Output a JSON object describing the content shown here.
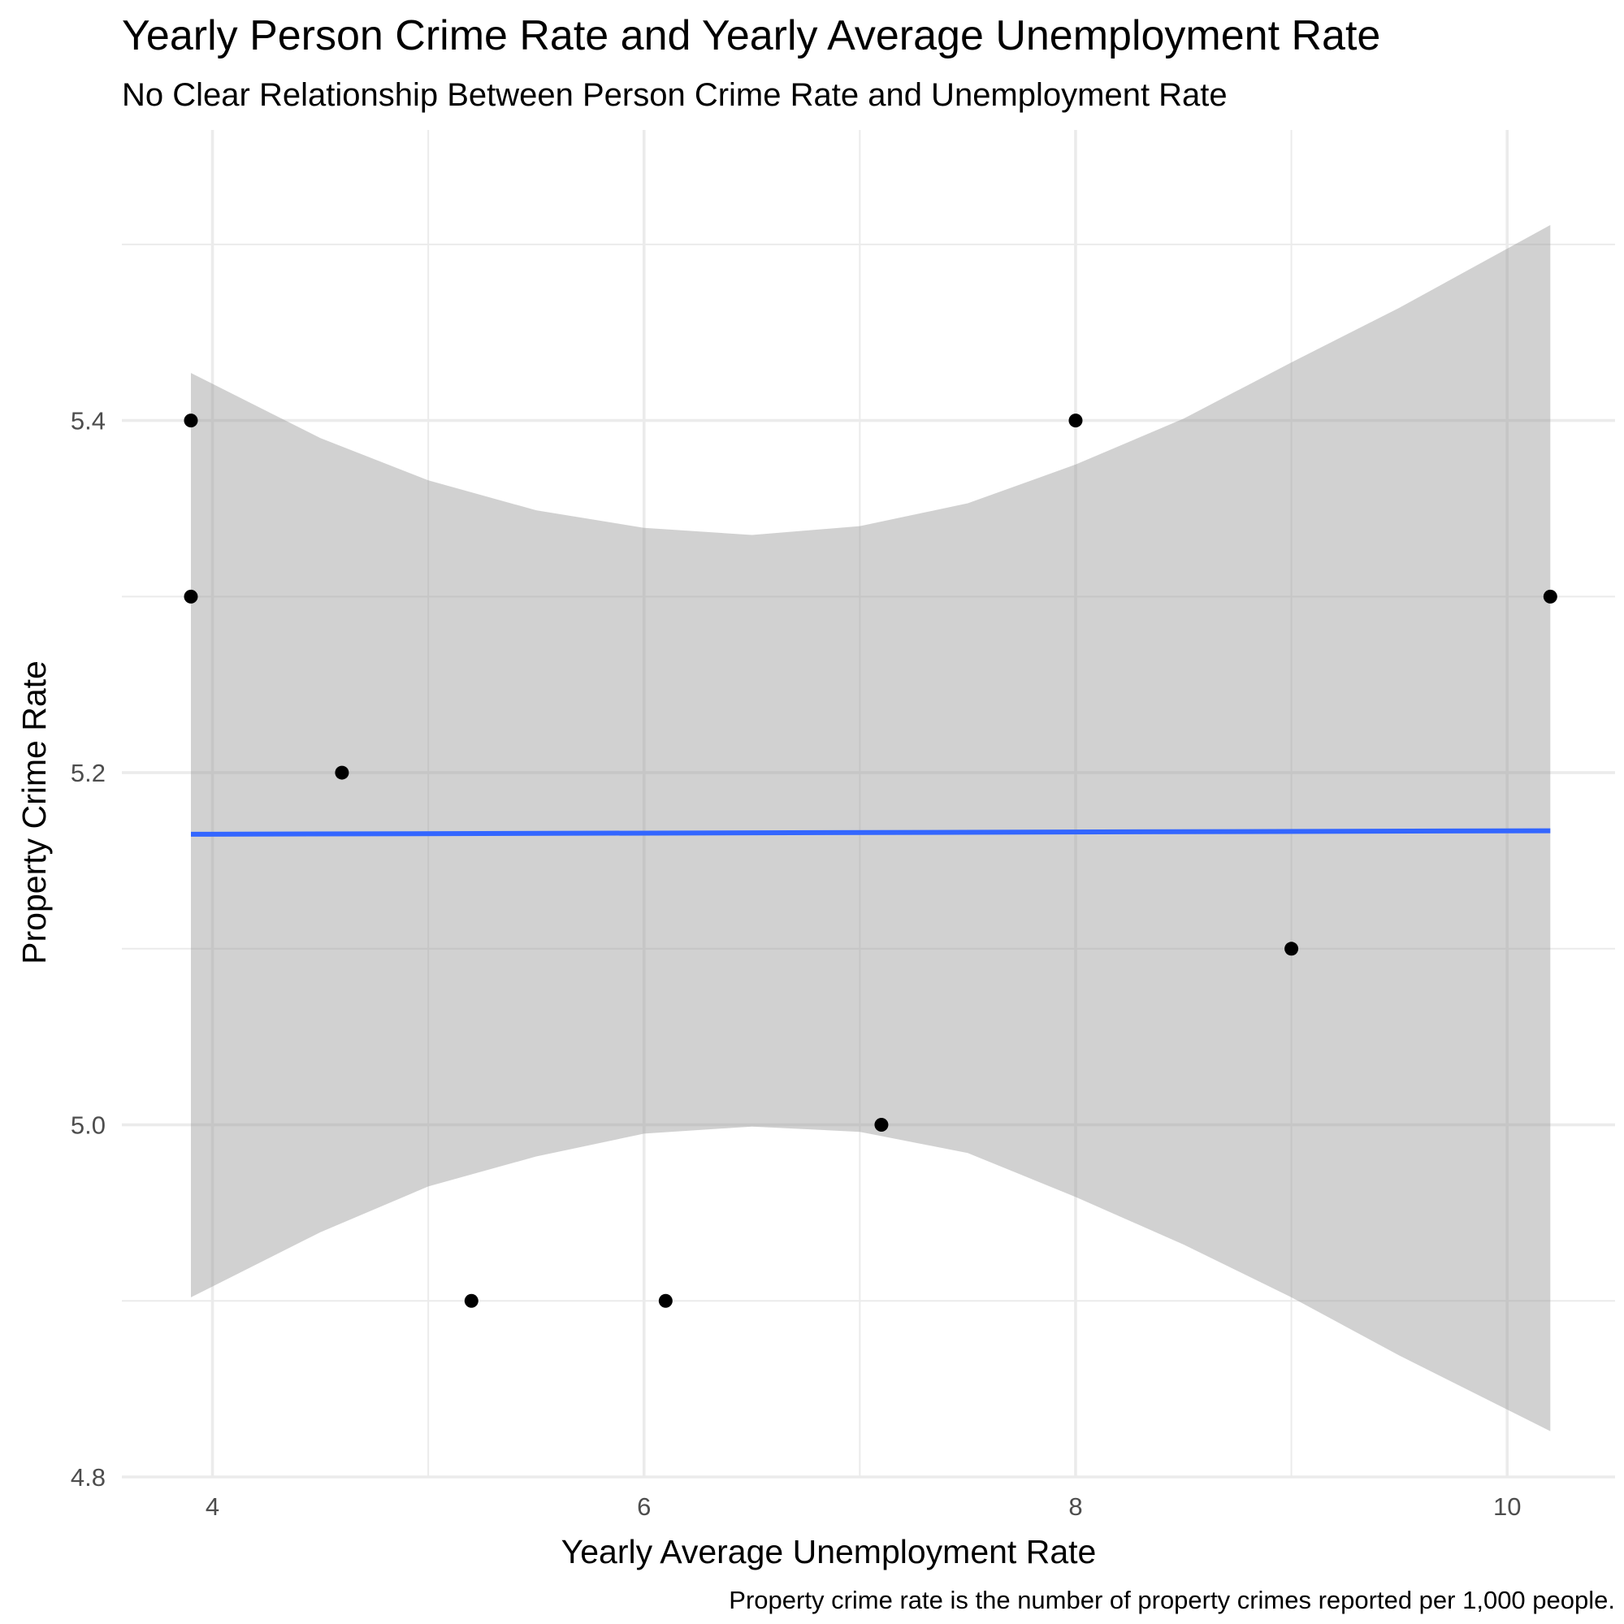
{
  "chart_data": {
    "type": "scatter",
    "title": "Yearly Person Crime Rate and Yearly Average Unemployment Rate",
    "subtitle": "No Clear Relationship Between Person Crime Rate and Unemployment Rate",
    "xlabel": "Yearly Average Unemployment Rate",
    "ylabel": "Property Crime Rate",
    "caption": "Property crime rate is the number of property crimes reported per 1,000 people.",
    "xlim": [
      3.58,
      10.5
    ],
    "ylim": [
      4.8,
      5.565
    ],
    "x_ticks": [
      4,
      6,
      8,
      10
    ],
    "x_tick_labels": [
      "4",
      "6",
      "8",
      "10"
    ],
    "x_minor_ticks": [
      5,
      7,
      9
    ],
    "y_ticks": [
      4.8,
      5.0,
      5.2,
      5.4
    ],
    "y_tick_labels": [
      "4.8",
      "5.0",
      "5.2",
      "5.4"
    ],
    "y_minor_ticks": [
      4.9,
      5.1,
      5.3,
      5.5
    ],
    "grid": true,
    "points": [
      {
        "x": 3.9,
        "y": 5.4
      },
      {
        "x": 3.9,
        "y": 5.3
      },
      {
        "x": 4.6,
        "y": 5.2
      },
      {
        "x": 5.2,
        "y": 4.9
      },
      {
        "x": 6.1,
        "y": 4.9
      },
      {
        "x": 7.1,
        "y": 5.0
      },
      {
        "x": 8.0,
        "y": 5.4
      },
      {
        "x": 9.0,
        "y": 5.1
      },
      {
        "x": 10.2,
        "y": 5.3
      }
    ],
    "fit_line": {
      "method": "linear",
      "x": [
        3.9,
        10.2
      ],
      "y": [
        5.165,
        5.167
      ],
      "color": "#3366FF"
    },
    "confidence_band": {
      "x": [
        3.9,
        4.5,
        5.0,
        5.5,
        6.0,
        6.5,
        7.0,
        7.5,
        8.0,
        8.5,
        9.0,
        9.5,
        10.2
      ],
      "upper": [
        5.427,
        5.39,
        5.366,
        5.349,
        5.339,
        5.335,
        5.34,
        5.353,
        5.375,
        5.401,
        5.433,
        5.464,
        5.511
      ],
      "lower": [
        4.902,
        4.939,
        4.965,
        4.982,
        4.995,
        4.999,
        4.996,
        4.984,
        4.959,
        4.932,
        4.902,
        4.869,
        4.826
      ],
      "color": "#999999"
    },
    "point_color": "#000000",
    "fit_line_color": "#3366FF",
    "band_color": "#999999",
    "grid_major_color": "#EBEBEB",
    "grid_minor_color": "#EBEBEB"
  }
}
